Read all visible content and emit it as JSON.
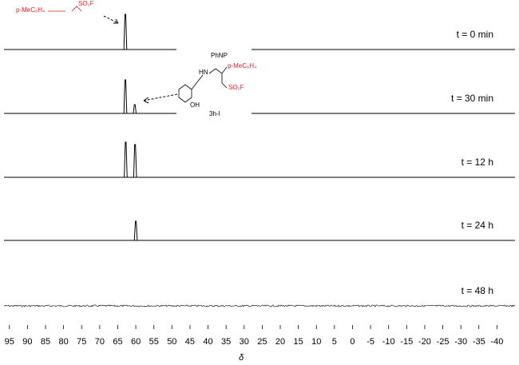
{
  "chart_data": {
    "type": "spectrum",
    "x_label": "δ",
    "xlim": [
      96.5,
      -45
    ],
    "xticks": [
      95,
      90,
      85,
      80,
      75,
      70,
      65,
      60,
      55,
      50,
      45,
      40,
      35,
      30,
      25,
      20,
      15,
      10,
      5,
      0,
      -5,
      -10,
      -15,
      -20,
      -25,
      -30,
      -35,
      -40
    ],
    "color": "#000000",
    "series": [
      {
        "name": "t = 0 min",
        "x": [
          62.9
        ],
        "values": [
          44
        ]
      },
      {
        "name": "t = 30 min",
        "x": [
          62.9,
          60.3
        ],
        "values": [
          42,
          11
        ]
      },
      {
        "name": "t = 12 h",
        "x": [
          62.8,
          60.2
        ],
        "values": [
          44,
          41
        ]
      },
      {
        "name": "t = 24 h",
        "x": [
          60.0
        ],
        "values": [
          24
        ]
      },
      {
        "name": "t = 48 h",
        "x": [],
        "values": []
      }
    ],
    "annotations": [
      "p-MeC₆H₄",
      "SO₂F",
      "PhNP",
      "HN",
      "p-MeC₆H₄",
      "SO₂F",
      "OH",
      "3h-I"
    ]
  }
}
